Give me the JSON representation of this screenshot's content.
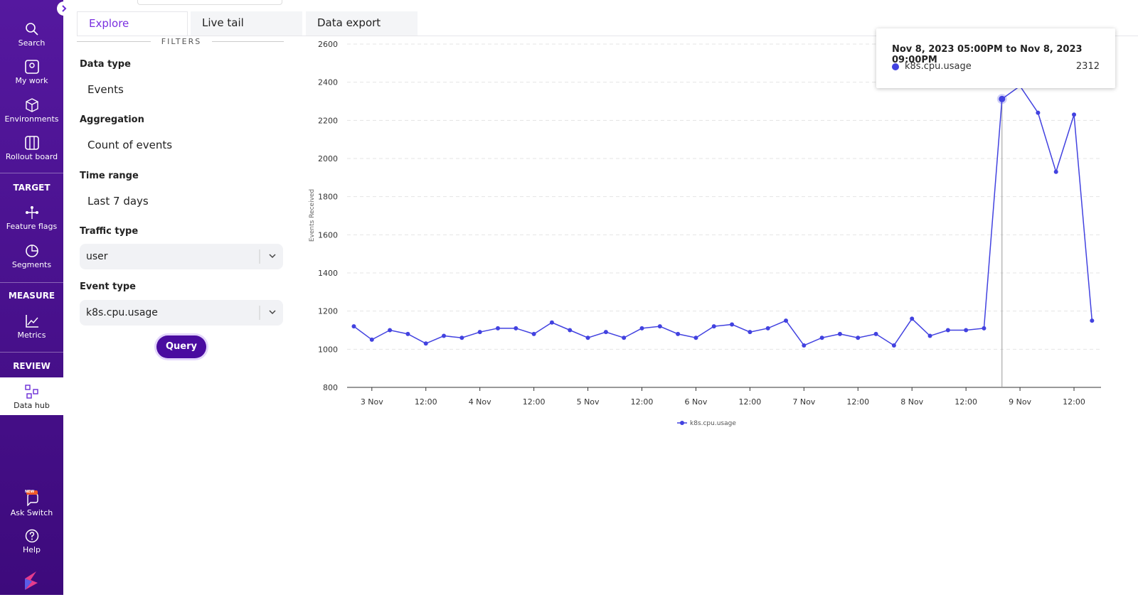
{
  "sidebar": {
    "top": [
      "Search",
      "My work",
      "Environments",
      "Rollout board"
    ],
    "sections": [
      {
        "title": "TARGET",
        "items": [
          "Feature flags",
          "Segments"
        ]
      },
      {
        "title": "MEASURE",
        "items": [
          "Metrics"
        ]
      },
      {
        "title": "REVIEW",
        "items": [
          "Data hub"
        ]
      }
    ],
    "bottom": [
      "Ask Switch",
      "Help"
    ],
    "badge": "NEW"
  },
  "tabs": [
    "Explore",
    "Live tail",
    "Data export"
  ],
  "filters": {
    "title": "FILTERS",
    "data_type": {
      "label": "Data type",
      "value": "Events"
    },
    "aggregation": {
      "label": "Aggregation",
      "value": "Count of events"
    },
    "time_range": {
      "label": "Time range",
      "value": "Last 7 days"
    },
    "traffic_type": {
      "label": "Traffic type",
      "value": "user"
    },
    "event_type": {
      "label": "Event type",
      "value": "k8s.cpu.usage"
    },
    "button": "Query"
  },
  "tooltip": {
    "title": "Nov 8, 2023 05:00PM to Nov 8, 2023 09:00PM"
  },
  "chart_data": {
    "type": "line",
    "y_label": "Events Received",
    "x": [
      "2023-11-02T20:00",
      "2023-11-03T00:00",
      "2023-11-03T04:00",
      "2023-11-03T08:00",
      "2023-11-03T12:00",
      "2023-11-03T16:00",
      "2023-11-03T20:00",
      "2023-11-04T00:00",
      "2023-11-04T04:00",
      "2023-11-04T08:00",
      "2023-11-04T12:00",
      "2023-11-04T16:00",
      "2023-11-04T20:00",
      "2023-11-05T00:00",
      "2023-11-05T04:00",
      "2023-11-05T08:00",
      "2023-11-05T12:00",
      "2023-11-05T16:00",
      "2023-11-05T20:00",
      "2023-11-06T00:00",
      "2023-11-06T04:00",
      "2023-11-06T08:00",
      "2023-11-06T12:00",
      "2023-11-06T16:00",
      "2023-11-06T20:00",
      "2023-11-07T00:00",
      "2023-11-07T04:00",
      "2023-11-07T08:00",
      "2023-11-07T12:00",
      "2023-11-07T16:00",
      "2023-11-07T20:00",
      "2023-11-08T00:00",
      "2023-11-08T04:00",
      "2023-11-08T08:00",
      "2023-11-08T12:00",
      "2023-11-08T16:00",
      "2023-11-08T20:00",
      "2023-11-09T00:00",
      "2023-11-09T04:00",
      "2023-11-09T08:00",
      "2023-11-09T12:00",
      "2023-11-09T16:00"
    ],
    "series": [
      {
        "name": "k8s.cpu.usage",
        "color": "#4242e0",
        "values": [
          1120,
          1050,
          1100,
          1080,
          1030,
          1070,
          1060,
          1090,
          1110,
          1110,
          1080,
          1140,
          1100,
          1060,
          1090,
          1060,
          1110,
          1120,
          1080,
          1060,
          1120,
          1130,
          1090,
          1110,
          1150,
          1020,
          1060,
          1080,
          1060,
          1080,
          1020,
          1160,
          1070,
          1100,
          1100,
          1110,
          2312,
          2380,
          2240,
          1930,
          2230,
          1150
        ]
      }
    ],
    "xlim": [
      "2023-11-02T18:30",
      "2023-11-09T18:00"
    ],
    "xticks": [
      {
        "value": "2023-11-03T00:00",
        "label": "3 Nov"
      },
      {
        "value": "2023-11-03T12:00",
        "label": "12:00"
      },
      {
        "value": "2023-11-04T00:00",
        "label": "4 Nov"
      },
      {
        "value": "2023-11-04T12:00",
        "label": "12:00"
      },
      {
        "value": "2023-11-05T00:00",
        "label": "5 Nov"
      },
      {
        "value": "2023-11-05T12:00",
        "label": "12:00"
      },
      {
        "value": "2023-11-06T00:00",
        "label": "6 Nov"
      },
      {
        "value": "2023-11-06T12:00",
        "label": "12:00"
      },
      {
        "value": "2023-11-07T00:00",
        "label": "7 Nov"
      },
      {
        "value": "2023-11-07T12:00",
        "label": "12:00"
      },
      {
        "value": "2023-11-08T00:00",
        "label": "8 Nov"
      },
      {
        "value": "2023-11-08T12:00",
        "label": "12:00"
      },
      {
        "value": "2023-11-09T00:00",
        "label": "9 Nov"
      },
      {
        "value": "2023-11-09T12:00",
        "label": "12:00"
      }
    ],
    "ylim": [
      800,
      2600
    ],
    "yticks": [
      800,
      1000,
      1200,
      1400,
      1600,
      1800,
      2000,
      2200,
      2400,
      2600
    ],
    "grid": true,
    "legend": "bottom"
  }
}
